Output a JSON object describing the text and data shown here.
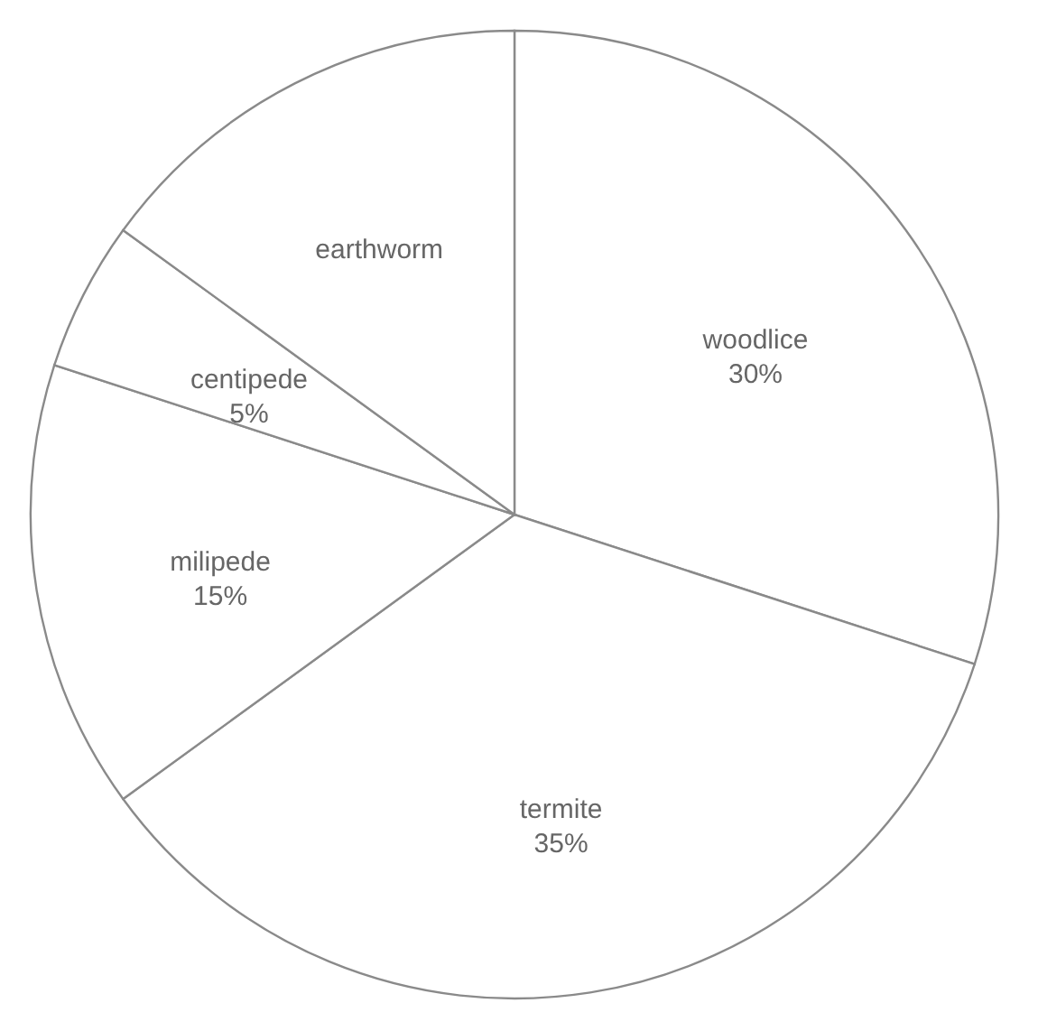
{
  "chart_data": {
    "type": "pie",
    "categories": [
      "woodlice",
      "termite",
      "milipede",
      "centipede",
      "earthworm"
    ],
    "values": [
      30,
      35,
      15,
      5,
      15
    ],
    "value_labels": [
      "30%",
      "35%",
      "15%",
      "5%",
      null
    ],
    "colors": [
      "#ffffff",
      "#ffffff",
      "#ffffff",
      "#ffffff",
      "#ffffff"
    ],
    "legend": false
  }
}
